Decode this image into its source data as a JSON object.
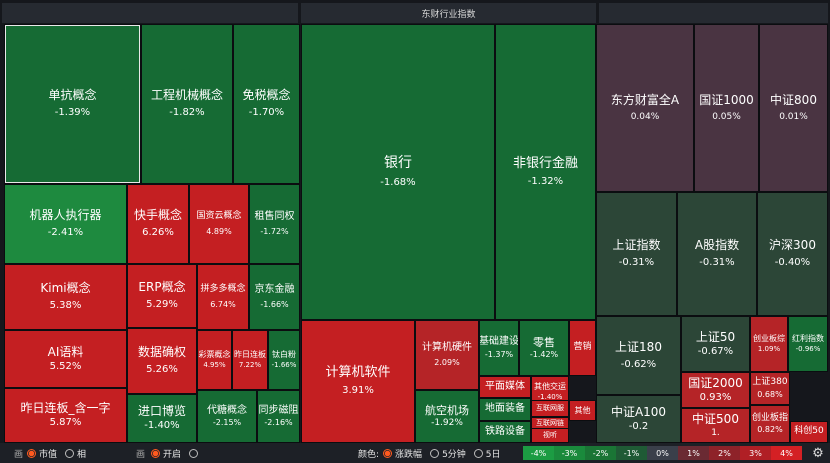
{
  "headers": {
    "left": "",
    "center": "东财行业指数",
    "right": ""
  },
  "colors": {
    "dark_green": "#166b34",
    "mid_green": "#1e8a3f",
    "deep_red": "#c41f22",
    "mid_red": "#b52427",
    "neutral_gray": "#2c4637",
    "purple": "#4a3442",
    "selected_orange": "#ff5a1f"
  },
  "tiles": [
    {
      "name": "单抗概念",
      "pct": "-1.39%"
    },
    {
      "name": "工程机械概念",
      "pct": "-1.82%"
    },
    {
      "name": "免税概念",
      "pct": "-1.70%"
    },
    {
      "name": "机器人执行器",
      "pct": "-2.41%"
    },
    {
      "name": "快手概念",
      "pct": "6.26%"
    },
    {
      "name": "国资云概念",
      "pct": "4.89%"
    },
    {
      "name": "租售同权",
      "pct": "-1.72%"
    },
    {
      "name": "Kimi概念",
      "pct": "5.38%"
    },
    {
      "name": "ERP概念",
      "pct": "5.29%"
    },
    {
      "name": "拼多多概念",
      "pct": "6.74%"
    },
    {
      "name": "京东金融",
      "pct": "-1.66%"
    },
    {
      "name": "AI语料",
      "pct": "5.52%"
    },
    {
      "name": "数据确权",
      "pct": "5.26%"
    },
    {
      "name": "彩票概念",
      "pct": "4.95%"
    },
    {
      "name": "昨日连板",
      "pct": "7.22%"
    },
    {
      "name": "钛白粉",
      "pct": "-1.66%"
    },
    {
      "name": "昨日连板_含一字",
      "pct": "5.87%"
    },
    {
      "name": "进口博览",
      "pct": "-1.40%"
    },
    {
      "name": "代糖概念",
      "pct": "-2.15%"
    },
    {
      "name": "同步磁阻",
      "pct": "-2.16%"
    },
    {
      "name": "银行",
      "pct": "-1.68%"
    },
    {
      "name": "非银行金融",
      "pct": "-1.32%"
    },
    {
      "name": "计算机软件",
      "pct": "3.91%"
    },
    {
      "name": "计算机硬件",
      "pct": "2.09%"
    },
    {
      "name": "基础建设",
      "pct": "-1.37%"
    },
    {
      "name": "零售",
      "pct": "-1.42%"
    },
    {
      "name": "营销",
      "pct": ""
    },
    {
      "name": "平面媒体",
      "pct": ""
    },
    {
      "name": "其他交运",
      "pct": "-1.40%"
    },
    {
      "name": "航空机场",
      "pct": "-1.92%"
    },
    {
      "name": "地面装备",
      "pct": ""
    },
    {
      "name": "互联网服",
      "pct": ""
    },
    {
      "name": "其他",
      "pct": ""
    },
    {
      "name": "铁路设备",
      "pct": ""
    },
    {
      "name": "互联网链",
      "pct": ""
    },
    {
      "name": "视听",
      "pct": ""
    },
    {
      "name": "东方财富全A",
      "pct": "0.04%"
    },
    {
      "name": "国证1000",
      "pct": "0.05%"
    },
    {
      "name": "中证800",
      "pct": "0.01%"
    },
    {
      "name": "上证指数",
      "pct": "-0.31%"
    },
    {
      "name": "A股指数",
      "pct": "-0.31%"
    },
    {
      "name": "沪深300",
      "pct": "-0.40%"
    },
    {
      "name": "上证180",
      "pct": "-0.62%"
    },
    {
      "name": "上证50",
      "pct": "-0.67%"
    },
    {
      "name": "创业板综",
      "pct": "1.09%"
    },
    {
      "name": "红利指数",
      "pct": "-0.96%"
    },
    {
      "name": "国证2000",
      "pct": "0.93%"
    },
    {
      "name": "上证380",
      "pct": "0.68%"
    },
    {
      "name": "中证A100",
      "pct": "-0.2"
    },
    {
      "name": "中证500",
      "pct": "1."
    },
    {
      "name": "创业板指",
      "pct": "0.82%"
    },
    {
      "name": "科创50",
      "pct": ""
    }
  ],
  "bottom": {
    "group1_label": "画",
    "group1_options": [
      "市值",
      "相"
    ],
    "group2_label": "画",
    "group2_options": [
      "开启",
      ""
    ],
    "color_label": "颜色:",
    "color_options": [
      "涨跌幅",
      "5分钟",
      "5日"
    ],
    "legend": [
      {
        "label": "-4%",
        "color": "#1c9c43"
      },
      {
        "label": "-3%",
        "color": "#1a8a3c"
      },
      {
        "label": "-2%",
        "color": "#1a7535"
      },
      {
        "label": "-1%",
        "color": "#1f5a35"
      },
      {
        "label": "0%",
        "color": "#3a3f4a"
      },
      {
        "label": "1%",
        "color": "#6a2a33"
      },
      {
        "label": "2%",
        "color": "#8e2229"
      },
      {
        "label": "3%",
        "color": "#b01f25"
      },
      {
        "label": "4%",
        "color": "#d42024"
      }
    ],
    "settings_icon": "gear-icon"
  }
}
